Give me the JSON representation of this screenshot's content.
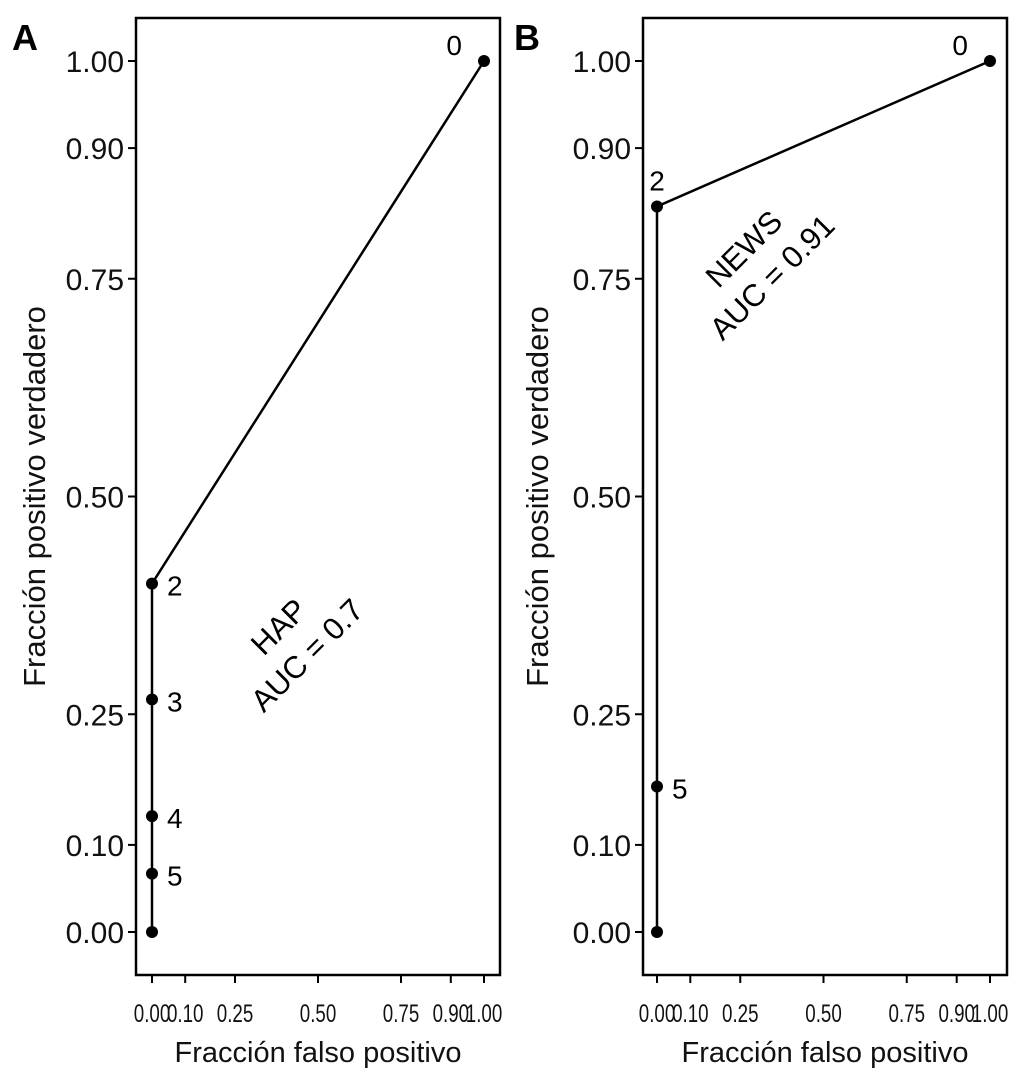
{
  "chart_data": [
    {
      "type": "line",
      "panel_label": "A",
      "xlabel": "Fracción falso positivo",
      "ylabel": "Fracción positivo verdadero",
      "xlim": [
        0,
        1
      ],
      "ylim": [
        0,
        1
      ],
      "xticks": [
        0,
        0.1,
        0.25,
        0.5,
        0.75,
        0.9,
        1.0
      ],
      "xtick_labels": [
        "0.00",
        "0.10",
        "0.25",
        "0.50",
        "0.75",
        "0.90",
        "1.00"
      ],
      "yticks": [
        0,
        0.1,
        0.25,
        0.5,
        0.75,
        0.9,
        1.0
      ],
      "ytick_labels": [
        "0.00",
        "0.10",
        "0.25",
        "0.50",
        "0.75",
        "0.90",
        "1.00"
      ],
      "grid": false,
      "points": [
        {
          "x": 0,
          "y": 0,
          "label": ""
        },
        {
          "x": 0,
          "y": 0.067,
          "label": "5"
        },
        {
          "x": 0,
          "y": 0.133,
          "label": "4"
        },
        {
          "x": 0,
          "y": 0.267,
          "label": "3"
        },
        {
          "x": 0,
          "y": 0.4,
          "label": "2"
        },
        {
          "x": 1,
          "y": 1,
          "label": "0"
        }
      ],
      "annotation": [
        "HAP",
        "AUC = 0.7"
      ]
    },
    {
      "type": "line",
      "panel_label": "B",
      "xlabel": "Fracción falso positivo",
      "ylabel": "Fracción positivo verdadero",
      "xlim": [
        0,
        1
      ],
      "ylim": [
        0,
        1
      ],
      "xticks": [
        0,
        0.1,
        0.25,
        0.5,
        0.75,
        0.9,
        1.0
      ],
      "xtick_labels": [
        "0.00",
        "0.10",
        "0.25",
        "0.50",
        "0.75",
        "0.90",
        "1.00"
      ],
      "yticks": [
        0,
        0.1,
        0.25,
        0.5,
        0.75,
        0.9,
        1.0
      ],
      "ytick_labels": [
        "0.00",
        "0.10",
        "0.25",
        "0.50",
        "0.75",
        "0.90",
        "1.00"
      ],
      "grid": false,
      "points": [
        {
          "x": 0,
          "y": 0,
          "label": ""
        },
        {
          "x": 0,
          "y": 0.167,
          "label": "5"
        },
        {
          "x": 0,
          "y": 0.833,
          "label": "2"
        },
        {
          "x": 1,
          "y": 1,
          "label": "0"
        }
      ],
      "annotation": [
        "NEWS",
        "AUC = 0.91"
      ]
    }
  ]
}
